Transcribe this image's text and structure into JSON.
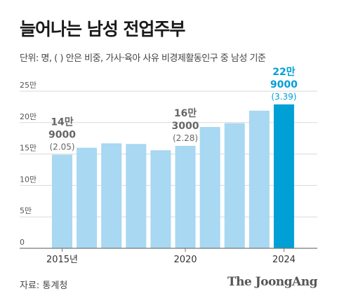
{
  "title": "늘어나는 남성 전업주부",
  "subtitle": "단위: 명, ( ) 안은 비중, 가사·육아 사유 비경제활동인구 중 남성 기준",
  "source": "자료: 통계청",
  "brand": "The JoongAng",
  "colors": {
    "bar": "#a8d8f2",
    "highlight": "#00a0d6",
    "grid": "#d9d9d9",
    "axis": "#777777",
    "label": "#666666"
  },
  "chart_data": {
    "type": "bar",
    "categories": [
      "2015",
      "2016",
      "2017",
      "2018",
      "2019",
      "2020",
      "2021",
      "2022",
      "2023",
      "2024"
    ],
    "values": [
      149000,
      160000,
      167000,
      166000,
      156000,
      163000,
      193000,
      199000,
      219000,
      229000
    ],
    "ylim": [
      0,
      250000
    ],
    "yticks": [
      {
        "value": 0,
        "label": "0"
      },
      {
        "value": 50000,
        "label": "5만"
      },
      {
        "value": 100000,
        "label": "10만"
      },
      {
        "value": 150000,
        "label": "15만"
      },
      {
        "value": 200000,
        "label": "20만"
      },
      {
        "value": 250000,
        "label": "25만"
      }
    ],
    "xticks": [
      {
        "index": 0,
        "label": "2015년"
      },
      {
        "index": 5,
        "label": "2020"
      },
      {
        "index": 9,
        "label": "2024"
      }
    ],
    "annotations": [
      {
        "index": 0,
        "line1": "14만",
        "line2": "9000",
        "share": "(2.05)"
      },
      {
        "index": 5,
        "line1": "16만",
        "line2": "3000",
        "share": "(2.28)"
      },
      {
        "index": 9,
        "line1": "22만",
        "line2": "9000",
        "share": "(3.39)",
        "highlight": true
      }
    ],
    "grid": true
  }
}
